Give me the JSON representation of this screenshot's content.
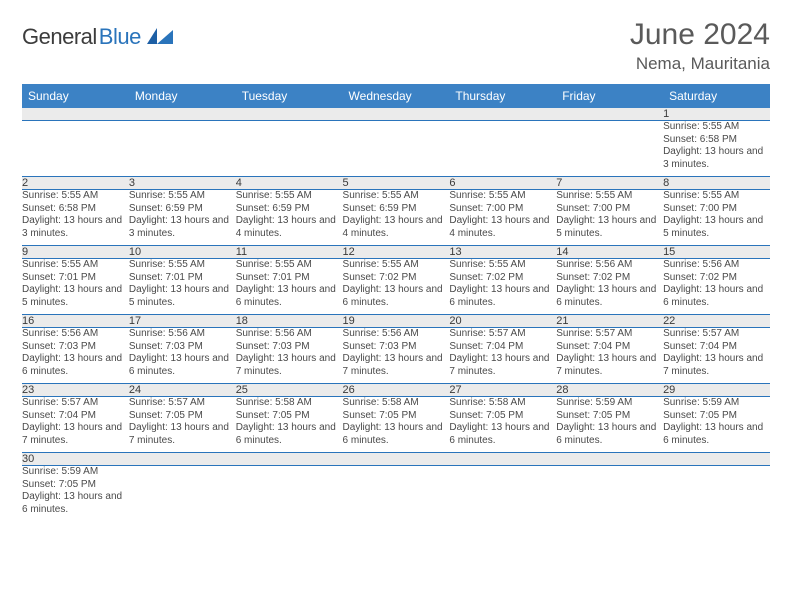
{
  "brand": {
    "part1": "General",
    "part2": "Blue"
  },
  "header": {
    "month_title": "June 2024",
    "location": "Nema, Mauritania"
  },
  "colors": {
    "header_bg": "#3c82c5",
    "header_fg": "#ffffff",
    "daynum_bg": "#ebebeb",
    "rule": "#2a74bb",
    "brand_blue": "#2a74bb",
    "text": "#3a3a3a"
  },
  "typography": {
    "title_fontsize": 30,
    "location_fontsize": 17,
    "weekday_fontsize": 12,
    "daynum_fontsize": 11,
    "detail_fontsize": 10
  },
  "layout": {
    "cols": 7,
    "daynum_row_height": 18,
    "detail_row_height": 56
  },
  "weekdays": [
    "Sunday",
    "Monday",
    "Tuesday",
    "Wednesday",
    "Thursday",
    "Friday",
    "Saturday"
  ],
  "weeks": [
    [
      null,
      null,
      null,
      null,
      null,
      null,
      {
        "n": "1",
        "sr": "Sunrise: 5:55 AM",
        "ss": "Sunset: 6:58 PM",
        "dl": "Daylight: 13 hours and 3 minutes."
      }
    ],
    [
      {
        "n": "2",
        "sr": "Sunrise: 5:55 AM",
        "ss": "Sunset: 6:58 PM",
        "dl": "Daylight: 13 hours and 3 minutes."
      },
      {
        "n": "3",
        "sr": "Sunrise: 5:55 AM",
        "ss": "Sunset: 6:59 PM",
        "dl": "Daylight: 13 hours and 3 minutes."
      },
      {
        "n": "4",
        "sr": "Sunrise: 5:55 AM",
        "ss": "Sunset: 6:59 PM",
        "dl": "Daylight: 13 hours and 4 minutes."
      },
      {
        "n": "5",
        "sr": "Sunrise: 5:55 AM",
        "ss": "Sunset: 6:59 PM",
        "dl": "Daylight: 13 hours and 4 minutes."
      },
      {
        "n": "6",
        "sr": "Sunrise: 5:55 AM",
        "ss": "Sunset: 7:00 PM",
        "dl": "Daylight: 13 hours and 4 minutes."
      },
      {
        "n": "7",
        "sr": "Sunrise: 5:55 AM",
        "ss": "Sunset: 7:00 PM",
        "dl": "Daylight: 13 hours and 5 minutes."
      },
      {
        "n": "8",
        "sr": "Sunrise: 5:55 AM",
        "ss": "Sunset: 7:00 PM",
        "dl": "Daylight: 13 hours and 5 minutes."
      }
    ],
    [
      {
        "n": "9",
        "sr": "Sunrise: 5:55 AM",
        "ss": "Sunset: 7:01 PM",
        "dl": "Daylight: 13 hours and 5 minutes."
      },
      {
        "n": "10",
        "sr": "Sunrise: 5:55 AM",
        "ss": "Sunset: 7:01 PM",
        "dl": "Daylight: 13 hours and 5 minutes."
      },
      {
        "n": "11",
        "sr": "Sunrise: 5:55 AM",
        "ss": "Sunset: 7:01 PM",
        "dl": "Daylight: 13 hours and 6 minutes."
      },
      {
        "n": "12",
        "sr": "Sunrise: 5:55 AM",
        "ss": "Sunset: 7:02 PM",
        "dl": "Daylight: 13 hours and 6 minutes."
      },
      {
        "n": "13",
        "sr": "Sunrise: 5:55 AM",
        "ss": "Sunset: 7:02 PM",
        "dl": "Daylight: 13 hours and 6 minutes."
      },
      {
        "n": "14",
        "sr": "Sunrise: 5:56 AM",
        "ss": "Sunset: 7:02 PM",
        "dl": "Daylight: 13 hours and 6 minutes."
      },
      {
        "n": "15",
        "sr": "Sunrise: 5:56 AM",
        "ss": "Sunset: 7:02 PM",
        "dl": "Daylight: 13 hours and 6 minutes."
      }
    ],
    [
      {
        "n": "16",
        "sr": "Sunrise: 5:56 AM",
        "ss": "Sunset: 7:03 PM",
        "dl": "Daylight: 13 hours and 6 minutes."
      },
      {
        "n": "17",
        "sr": "Sunrise: 5:56 AM",
        "ss": "Sunset: 7:03 PM",
        "dl": "Daylight: 13 hours and 6 minutes."
      },
      {
        "n": "18",
        "sr": "Sunrise: 5:56 AM",
        "ss": "Sunset: 7:03 PM",
        "dl": "Daylight: 13 hours and 7 minutes."
      },
      {
        "n": "19",
        "sr": "Sunrise: 5:56 AM",
        "ss": "Sunset: 7:03 PM",
        "dl": "Daylight: 13 hours and 7 minutes."
      },
      {
        "n": "20",
        "sr": "Sunrise: 5:57 AM",
        "ss": "Sunset: 7:04 PM",
        "dl": "Daylight: 13 hours and 7 minutes."
      },
      {
        "n": "21",
        "sr": "Sunrise: 5:57 AM",
        "ss": "Sunset: 7:04 PM",
        "dl": "Daylight: 13 hours and 7 minutes."
      },
      {
        "n": "22",
        "sr": "Sunrise: 5:57 AM",
        "ss": "Sunset: 7:04 PM",
        "dl": "Daylight: 13 hours and 7 minutes."
      }
    ],
    [
      {
        "n": "23",
        "sr": "Sunrise: 5:57 AM",
        "ss": "Sunset: 7:04 PM",
        "dl": "Daylight: 13 hours and 7 minutes."
      },
      {
        "n": "24",
        "sr": "Sunrise: 5:57 AM",
        "ss": "Sunset: 7:05 PM",
        "dl": "Daylight: 13 hours and 7 minutes."
      },
      {
        "n": "25",
        "sr": "Sunrise: 5:58 AM",
        "ss": "Sunset: 7:05 PM",
        "dl": "Daylight: 13 hours and 6 minutes."
      },
      {
        "n": "26",
        "sr": "Sunrise: 5:58 AM",
        "ss": "Sunset: 7:05 PM",
        "dl": "Daylight: 13 hours and 6 minutes."
      },
      {
        "n": "27",
        "sr": "Sunrise: 5:58 AM",
        "ss": "Sunset: 7:05 PM",
        "dl": "Daylight: 13 hours and 6 minutes."
      },
      {
        "n": "28",
        "sr": "Sunrise: 5:59 AM",
        "ss": "Sunset: 7:05 PM",
        "dl": "Daylight: 13 hours and 6 minutes."
      },
      {
        "n": "29",
        "sr": "Sunrise: 5:59 AM",
        "ss": "Sunset: 7:05 PM",
        "dl": "Daylight: 13 hours and 6 minutes."
      }
    ],
    [
      {
        "n": "30",
        "sr": "Sunrise: 5:59 AM",
        "ss": "Sunset: 7:05 PM",
        "dl": "Daylight: 13 hours and 6 minutes."
      },
      null,
      null,
      null,
      null,
      null,
      null
    ]
  ]
}
